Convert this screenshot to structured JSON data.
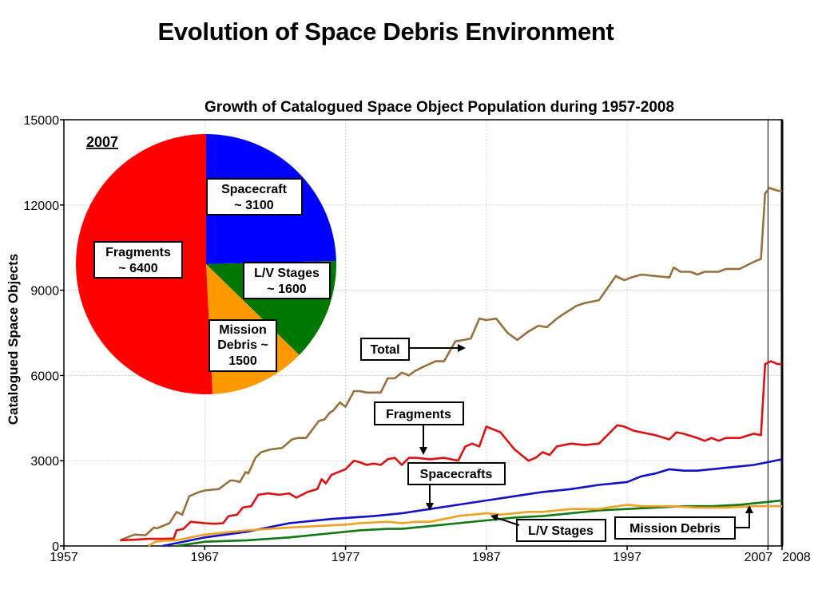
{
  "page": {
    "title": "Evolution of Space Debris Environment"
  },
  "colors": {
    "total": "#98703c",
    "fragments": "#dd1111",
    "spacecraft": "#1111cc",
    "lv_stages": "#117711",
    "mission_debris": "#f0a020",
    "pie_spacecraft": "#0000ff",
    "pie_lv": "#007700",
    "pie_mission": "#ff9900",
    "pie_fragments": "#ff0000",
    "grid": "#bbbbbb"
  },
  "chart_data": [
    {
      "type": "line",
      "title": "Growth of Catalogued Space Object Population during 1957-2008",
      "xlabel": "",
      "ylabel": "Catalogued Space Objects",
      "xlim": [
        1957,
        2008
      ],
      "ylim": [
        0,
        15000
      ],
      "xticks": [
        1957,
        1967,
        1977,
        1987,
        1997,
        2007,
        2008
      ],
      "yticks": [
        0,
        3000,
        6000,
        9000,
        12000,
        15000
      ],
      "grid": true,
      "series": [
        {
          "key": "total",
          "x": [
            1961,
            1961.5,
            1962,
            1962.8,
            1963.4,
            1963.6,
            1964.5,
            1965,
            1965.4,
            1965.9,
            1966.6,
            1967,
            1967.5,
            1968,
            1968.8,
            1969.1,
            1969.5,
            1969.9,
            1970.1,
            1970.6,
            1971,
            1971.7,
            1972.5,
            1973.2,
            1973.6,
            1974.2,
            1975.1,
            1975.5,
            1975.9,
            1976.1,
            1976.6,
            1977,
            1977.6,
            1978,
            1978.5,
            1979.5,
            1980,
            1980.5,
            1981,
            1981.5,
            1981.9,
            1982.5,
            1983.4,
            1984,
            1984.8,
            1985.4,
            1985.9,
            1986.5,
            1987,
            1987.7,
            1988.5,
            1989.2,
            1990,
            1990.7,
            1991.3,
            1992,
            1992.6,
            1993.4,
            1994,
            1995,
            1996.2,
            1996.8,
            1997.3,
            1998,
            1999,
            2000,
            2000.3,
            2000.8,
            2001.5,
            2002,
            2002.5,
            2003.5,
            2004,
            2005,
            2006,
            2006.5,
            2006.8,
            2007.1,
            2007.7,
            2008
          ],
          "values": [
            200,
            300,
            400,
            380,
            650,
            620,
            800,
            1200,
            1100,
            1750,
            1900,
            1950,
            1980,
            2000,
            2300,
            2300,
            2250,
            2600,
            2550,
            3100,
            3300,
            3400,
            3450,
            3750,
            3800,
            3800,
            4400,
            4450,
            4700,
            4750,
            5050,
            4900,
            5450,
            5450,
            5400,
            5400,
            5900,
            5900,
            6100,
            6000,
            6150,
            6300,
            6500,
            6500,
            7200,
            7250,
            7300,
            8000,
            7950,
            8000,
            7500,
            7250,
            7550,
            7750,
            7700,
            8000,
            8200,
            8450,
            8550,
            8650,
            9500,
            9350,
            9450,
            9550,
            9500,
            9450,
            9800,
            9650,
            9650,
            9550,
            9650,
            9650,
            9750,
            9750,
            10000,
            10100,
            12400,
            12600,
            12500,
            12500
          ]
        },
        {
          "key": "fragments",
          "x": [
            1961,
            1962,
            1963,
            1964,
            1964.8,
            1965,
            1965.5,
            1966,
            1967,
            1967.7,
            1968.3,
            1968.7,
            1969.3,
            1969.7,
            1970.3,
            1970.8,
            1971.5,
            1972.3,
            1973,
            1973.5,
            1974.3,
            1975,
            1975.3,
            1975.6,
            1976,
            1976.5,
            1977,
            1977.6,
            1978,
            1978.5,
            1979,
            1979.5,
            1980,
            1980.5,
            1981,
            1981.5,
            1982,
            1983,
            1984,
            1985,
            1985.5,
            1986,
            1986.5,
            1987,
            1987.5,
            1988,
            1988.5,
            1989,
            1989.5,
            1990,
            1990.5,
            1991,
            1991.5,
            1992,
            1993,
            1994,
            1995,
            1996.3,
            1996.8,
            1997.5,
            1998,
            1999,
            2000,
            2000.5,
            2001,
            2002,
            2002.5,
            2003,
            2003.5,
            2004,
            2005,
            2006,
            2006.5,
            2006.8,
            2007.2,
            2007.7,
            2008
          ],
          "values": [
            200,
            220,
            250,
            250,
            260,
            550,
            600,
            850,
            800,
            780,
            800,
            1050,
            1100,
            1350,
            1400,
            1800,
            1850,
            1800,
            1850,
            1700,
            1900,
            2000,
            2350,
            2200,
            2500,
            2600,
            2700,
            3000,
            2950,
            2850,
            2900,
            2850,
            3050,
            3100,
            2850,
            3100,
            3100,
            3050,
            3100,
            3000,
            3500,
            3600,
            3500,
            4200,
            4100,
            4000,
            3700,
            3400,
            3200,
            3000,
            3100,
            3300,
            3200,
            3500,
            3600,
            3550,
            3600,
            4250,
            4200,
            4050,
            4000,
            3900,
            3750,
            4000,
            3950,
            3800,
            3700,
            3800,
            3700,
            3800,
            3800,
            3950,
            3900,
            6400,
            6500,
            6400,
            6400
          ]
        },
        {
          "key": "spacecraft",
          "x": [
            1964,
            1967,
            1970,
            1973,
            1976,
            1979,
            1981,
            1983,
            1985,
            1987,
            1989,
            1991,
            1993,
            1995,
            1997,
            1998,
            1999,
            2000,
            2001,
            2002,
            2003,
            2004,
            2005,
            2006,
            2007,
            2008
          ],
          "values": [
            0,
            300,
            500,
            800,
            950,
            1050,
            1150,
            1300,
            1450,
            1600,
            1750,
            1900,
            2000,
            2150,
            2250,
            2450,
            2550,
            2700,
            2650,
            2650,
            2700,
            2750,
            2800,
            2850,
            2950,
            3050
          ]
        },
        {
          "key": "lv_stages",
          "x": [
            1965,
            1967,
            1970,
            1973,
            1976,
            1978,
            1980,
            1981,
            1983,
            1985,
            1987,
            1989,
            1991,
            1993,
            1995,
            1997,
            1999,
            2001,
            2003,
            2005,
            2006,
            2007,
            2008
          ],
          "values": [
            0,
            150,
            200,
            300,
            450,
            550,
            600,
            600,
            700,
            800,
            900,
            1000,
            1050,
            1150,
            1250,
            1300,
            1350,
            1400,
            1400,
            1450,
            1500,
            1550,
            1600
          ]
        },
        {
          "key": "mission_debris",
          "x": [
            1963,
            1963.5,
            1964,
            1965,
            1966,
            1967,
            1970,
            1973,
            1975,
            1977,
            1978,
            1980,
            1981,
            1982,
            1983,
            1984,
            1985,
            1986,
            1987,
            1988,
            1989,
            1990,
            1991,
            1992,
            1993,
            1995,
            1997,
            1998,
            2000,
            2002,
            2004,
            2006,
            2007,
            2008
          ],
          "values": [
            0,
            150,
            180,
            200,
            300,
            400,
            550,
            650,
            700,
            750,
            800,
            850,
            800,
            850,
            850,
            950,
            1050,
            1100,
            1150,
            1100,
            1150,
            1200,
            1200,
            1250,
            1300,
            1300,
            1450,
            1400,
            1400,
            1350,
            1350,
            1400,
            1400,
            1400
          ]
        }
      ],
      "labels": {
        "total": "Total",
        "fragments": "Fragments",
        "spacecrafts": "Spacecrafts",
        "lv_stages": "L/V Stages",
        "mission_debris": "Mission Debris"
      }
    },
    {
      "type": "pie",
      "title": "2007",
      "slices": [
        {
          "key": "spacecraft",
          "label": "Spacecraft",
          "value_text": "~ 3100",
          "value": 3100
        },
        {
          "key": "lv",
          "label": "L/V Stages",
          "value_text": "~ 1600",
          "value": 1600
        },
        {
          "key": "mission",
          "label": "Mission",
          "label2": "Debris ~",
          "value_text": "1500",
          "value": 1500
        },
        {
          "key": "fragments",
          "label": "Fragments",
          "value_text": "~ 6400",
          "value": 6400
        }
      ]
    }
  ]
}
